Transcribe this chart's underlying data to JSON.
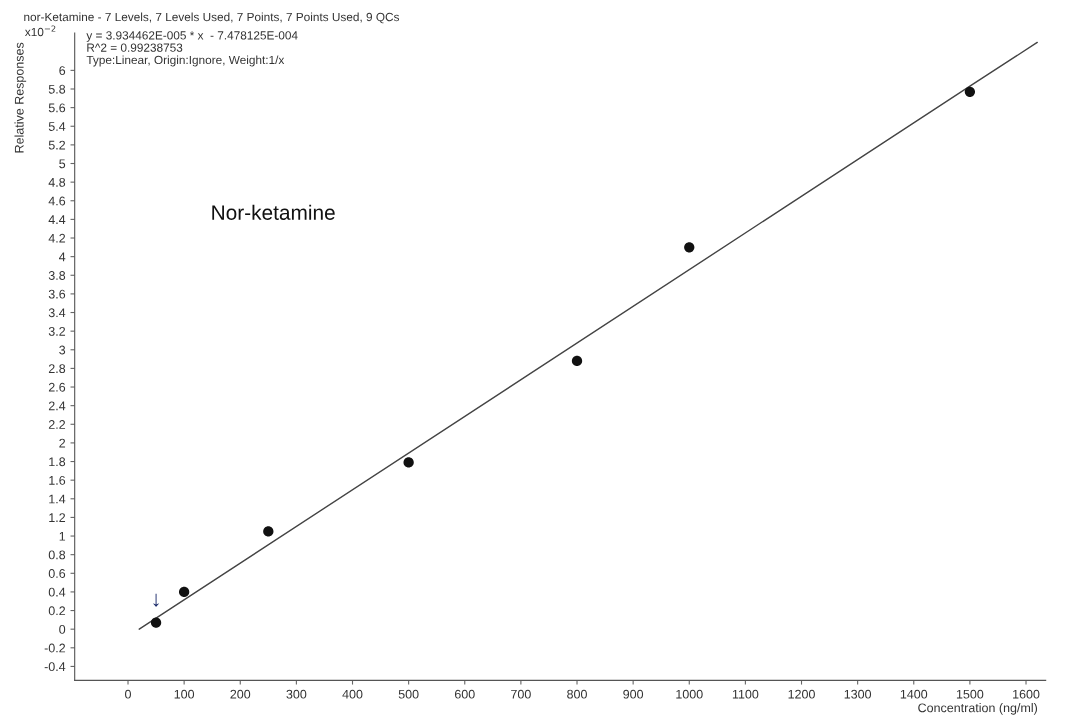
{
  "chart_data": {
    "type": "scatter",
    "title": "nor-Ketamine - 7 Levels, 7 Levels Used, 7 Points, 7 Points Used, 9 QCs",
    "xlabel": "Concentration (ng/ml)",
    "ylabel": "Relative Responses",
    "annotations": [
      "x10$^{−2}$",
      "y = 3.934462E-005 * x  - 7.478125E-004",
      "R^2 = 0.99238753",
      "Type:Linear, Origin:Ignore, Weight:1/x",
      "Nor-ketamine",
      {
        "text": "↓",
        "x": 50,
        "y": 0.07
      }
    ],
    "series": [
      {
        "color": "#111111",
        "marker": "circle",
        "x": [
          50,
          100,
          250,
          500,
          800,
          1000,
          1500
        ],
        "values": [
          0.07,
          0.4,
          1.05,
          1.79,
          2.88,
          4.1,
          5.77
        ]
      },
      {
        "type": "line",
        "color": "#444444",
        "marker": "none",
        "x": [
          20,
          1500,
          1620
        ],
        "values": [
          0.0,
          5.83,
          6.3
        ]
      }
    ],
    "xlim": [
      -95,
      1635
    ],
    "ylim": [
      -0.55,
      6.4
    ],
    "xticks": [
      0,
      100,
      200,
      300,
      400,
      500,
      600,
      700,
      800,
      900,
      1000,
      1100,
      1200,
      1300,
      1400,
      1500,
      1600
    ],
    "yticks": [
      -0.4,
      -0.2,
      0,
      0.2,
      0.4,
      0.6,
      0.8,
      1,
      1.2,
      1.4,
      1.6,
      1.8,
      2,
      2.2,
      2.4,
      2.6,
      2.8,
      3,
      3.2,
      3.4,
      3.6,
      3.8,
      4,
      4.2,
      4.4,
      4.6,
      4.8,
      5,
      5.2,
      5.4,
      5.6,
      5.8,
      6
    ],
    "grid": false,
    "legend": false
  }
}
